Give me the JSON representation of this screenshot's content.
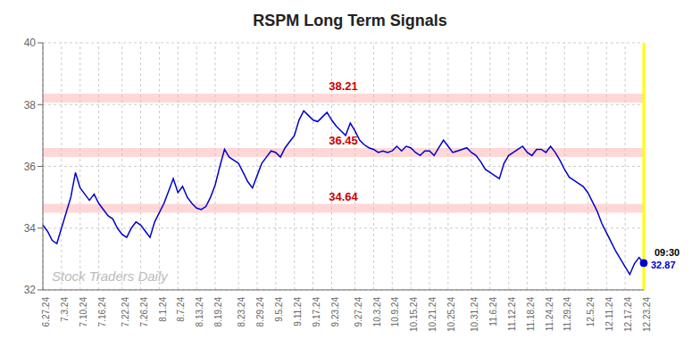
{
  "chart_data": {
    "type": "line",
    "title": "RSPM Long Term Signals",
    "categories": [
      "6.27.24",
      null,
      null,
      null,
      "7.3.24",
      null,
      null,
      null,
      "7.10.24",
      null,
      null,
      null,
      "7.16.24",
      null,
      null,
      null,
      null,
      "7.22.24",
      null,
      null,
      null,
      "7.26.24",
      null,
      null,
      null,
      "8.1.24",
      null,
      null,
      null,
      "8.7.24",
      null,
      null,
      null,
      "8.13.24",
      null,
      null,
      null,
      "8.19.24",
      null,
      null,
      null,
      null,
      "8.23.24",
      null,
      null,
      null,
      "8.29.24",
      null,
      null,
      null,
      "9.5.24",
      null,
      null,
      null,
      "9.11.24",
      null,
      null,
      null,
      "9.17.24",
      null,
      null,
      null,
      "9.23.24",
      null,
      null,
      null,
      null,
      "9.27.24",
      null,
      null,
      null,
      "10.3.24",
      null,
      null,
      null,
      "10.9.24",
      null,
      null,
      null,
      "10.15.24",
      null,
      null,
      null,
      "10.21.24",
      null,
      null,
      null,
      "10.25.24",
      null,
      null,
      null,
      null,
      "10.31.24",
      null,
      null,
      null,
      "11.6.24",
      null,
      null,
      null,
      "11.12.24",
      null,
      null,
      null,
      "11.18.24",
      null,
      null,
      null,
      "11.24.24",
      null,
      null,
      null,
      "11.29.24",
      null,
      null,
      null,
      null,
      "12.5.24",
      null,
      null,
      null,
      "12.11.24",
      null,
      null,
      null,
      "12.17.24",
      null,
      null,
      null,
      "12.23.24"
    ],
    "values": [
      34.1,
      33.9,
      33.6,
      33.5,
      34.0,
      34.5,
      35.0,
      35.8,
      35.3,
      35.1,
      34.9,
      35.1,
      34.8,
      34.6,
      34.4,
      34.3,
      34.0,
      33.8,
      33.7,
      34.0,
      34.2,
      34.1,
      33.9,
      33.7,
      34.2,
      34.5,
      34.8,
      35.2,
      35.6,
      35.15,
      35.35,
      35.0,
      34.8,
      34.65,
      34.6,
      34.7,
      35.0,
      35.4,
      36.0,
      36.55,
      36.3,
      36.2,
      36.1,
      35.8,
      35.5,
      35.3,
      35.7,
      36.1,
      36.3,
      36.5,
      36.45,
      36.3,
      36.6,
      36.8,
      37.0,
      37.5,
      37.8,
      37.65,
      37.5,
      37.45,
      37.6,
      37.75,
      37.5,
      37.3,
      37.15,
      37.0,
      37.4,
      37.15,
      36.85,
      36.7,
      36.6,
      36.55,
      36.45,
      36.5,
      36.45,
      36.5,
      36.65,
      36.5,
      36.65,
      36.6,
      36.45,
      36.35,
      36.5,
      36.5,
      36.35,
      36.6,
      36.85,
      36.65,
      36.45,
      36.5,
      36.55,
      36.6,
      36.45,
      36.35,
      36.15,
      35.9,
      35.8,
      35.7,
      35.6,
      36.1,
      36.35,
      36.45,
      36.55,
      36.65,
      36.45,
      36.35,
      36.55,
      36.55,
      36.45,
      36.65,
      36.45,
      36.2,
      35.9,
      35.65,
      35.55,
      35.45,
      35.35,
      35.15,
      34.85,
      34.55,
      34.15,
      33.85,
      33.55,
      33.25,
      33.0,
      32.75,
      32.5,
      32.85,
      33.05,
      32.87
    ],
    "color": "#0000cc",
    "ylim": [
      32,
      40
    ],
    "yticks": [
      32,
      34,
      36,
      38,
      40
    ],
    "grid": true,
    "reference_lines": {
      "values": [
        38.21,
        36.45,
        34.64
      ],
      "labels": [
        "38.21",
        "36.45",
        "34.64"
      ],
      "color": "#ffb0b0",
      "label_color": "#cc0000"
    },
    "last_point": {
      "label": "09:30",
      "value_label": "32.87",
      "color": "#0000cc",
      "line_color": "#ffff00"
    },
    "watermark": {
      "text": "Stock Traders Daily",
      "color": "#bbbbbb"
    }
  }
}
